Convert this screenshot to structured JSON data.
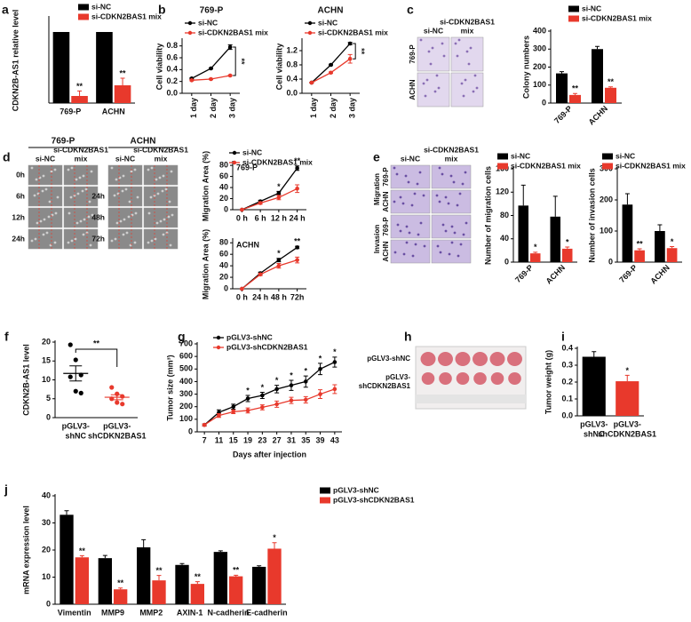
{
  "chart_data": [
    {
      "type": "bar",
      "panel": "a",
      "ylabel": "CDKN2B-AS1 relative level",
      "categories": [
        "769-P",
        "ACHN"
      ],
      "series": [
        {
          "name": "si-NC",
          "color": "#000000",
          "values": [
            1,
            1
          ]
        },
        {
          "name": "si-CDKN2BAS1 mix",
          "color": "#e8392c",
          "values": [
            0.1,
            0.25
          ],
          "errors": [
            0.07,
            0.1
          ],
          "significance": [
            "**",
            "**"
          ]
        }
      ],
      "ylim": [
        0,
        1.2
      ],
      "yticks": []
    },
    {
      "type": "line",
      "panel": "b",
      "title": "769-P",
      "ylabel": "Cell viability",
      "categories": [
        "1 day",
        "2 day",
        "3 day"
      ],
      "series": [
        {
          "name": "si-NC",
          "color": "#000000",
          "values": [
            0.25,
            0.42,
            0.78
          ],
          "errors": [
            0.01,
            0.01,
            0.04
          ]
        },
        {
          "name": "si-CDKN2BAS1 mix",
          "color": "#e8392c",
          "values": [
            0.22,
            0.24,
            0.3
          ],
          "errors": [
            0.01,
            0.01,
            0.01
          ]
        }
      ],
      "ylim": [
        0,
        0.9
      ],
      "yticks": [
        {
          "value": 0,
          "label": "0.0"
        },
        0.2,
        0.4,
        0.6,
        0.8
      ],
      "significance": "**"
    },
    {
      "type": "line",
      "title": "ACHN",
      "ylabel": "Cell viability",
      "categories": [
        "1 day",
        "2 day",
        "3 day"
      ],
      "series": [
        {
          "name": "si-NC",
          "color": "#000000",
          "values": [
            0.3,
            0.8,
            1.4
          ],
          "errors": [
            0.01,
            0.02,
            0.03
          ]
        },
        {
          "name": "si-CDKN2BAS1 mix",
          "color": "#e8392c",
          "values": [
            0.3,
            0.58,
            0.97
          ],
          "errors": [
            0.01,
            0.02,
            0.12
          ]
        }
      ],
      "ylim": [
        0,
        1.5
      ],
      "yticks": [
        {
          "value": 0,
          "label": "0.0"
        },
        0.4,
        0.8,
        1.2
      ],
      "significance": "**"
    },
    {
      "type": "bar",
      "ylabel": "Colony numbers",
      "categories": [
        "769-P",
        "ACHN"
      ],
      "series": [
        {
          "name": "si-NC",
          "color": "#000000",
          "values": [
            165,
            300
          ],
          "errors": [
            10,
            15
          ]
        },
        {
          "name": "si-CDKN2BAS1 mix",
          "color": "#e8392c",
          "values": [
            45,
            85
          ],
          "errors": [
            8,
            5
          ],
          "significance": [
            "**",
            "**"
          ]
        }
      ],
      "ylim": [
        0,
        400
      ],
      "yticks": [
        0,
        100,
        200,
        300,
        400
      ]
    },
    {
      "type": "line",
      "title": "769-P",
      "ylabel": "Migration Area (%)",
      "categories": [
        "0 h",
        "6 h",
        "12 h",
        "24 h"
      ],
      "series": [
        {
          "name": "si-NC",
          "color": "#000000",
          "values": [
            0,
            15,
            30,
            75
          ],
          "errors": [
            0,
            2,
            3,
            4
          ]
        },
        {
          "name": "si-CDKN2BAS1 mix",
          "color": "#e8392c",
          "values": [
            0,
            12,
            22,
            38
          ],
          "errors": [
            0,
            2,
            4,
            7
          ]
        }
      ],
      "ylim": [
        0,
        85
      ],
      "yticks": [
        0,
        20,
        40,
        60,
        80
      ],
      "significance": [
        null,
        null,
        "*",
        "**"
      ]
    },
    {
      "type": "line",
      "title": "ACHN",
      "ylabel": "Migration Area (%)",
      "categories": [
        "0 h",
        "24 h",
        "48 h",
        "72h"
      ],
      "series": [
        {
          "name": "si-NC",
          "color": "#000000",
          "values": [
            0,
            27,
            50,
            72
          ],
          "errors": [
            0,
            2,
            3,
            2
          ]
        },
        {
          "name": "si-CDKN2BAS1 mix",
          "color": "#e8392c",
          "values": [
            0,
            25,
            40,
            50
          ],
          "errors": [
            0,
            2,
            4,
            5
          ]
        }
      ],
      "ylim": [
        0,
        85
      ],
      "yticks": [
        0,
        20,
        40,
        60,
        80
      ],
      "significance": [
        null,
        null,
        "*",
        "**"
      ]
    },
    {
      "type": "bar",
      "ylabel": "Number of migration cells",
      "categories": [
        "769-P",
        "ACHN"
      ],
      "series": [
        {
          "name": "si-NC",
          "color": "#000000",
          "values": [
            97,
            78
          ],
          "errors": [
            35,
            35
          ]
        },
        {
          "name": "si-CDKN2BAS1 mix",
          "color": "#e8392c",
          "values": [
            15,
            23
          ],
          "errors": [
            2,
            3
          ],
          "significance": [
            "*",
            "*"
          ]
        }
      ],
      "ylim": [
        0,
        160
      ],
      "yticks": [
        0,
        40,
        80,
        120,
        160
      ]
    },
    {
      "type": "bar",
      "ylabel": "Number of invasion cells",
      "categories": [
        "769-P",
        "ACHN"
      ],
      "series": [
        {
          "name": "si-NC",
          "color": "#000000",
          "values": [
            185,
            100
          ],
          "errors": [
            35,
            20
          ]
        },
        {
          "name": "si-CDKN2BAS1 mix",
          "color": "#e8392c",
          "values": [
            38,
            45
          ],
          "errors": [
            5,
            5
          ],
          "significance": [
            "**",
            "*"
          ]
        }
      ],
      "ylim": [
        0,
        300
      ],
      "yticks": [
        0,
        100,
        200,
        300
      ]
    },
    {
      "type": "strip",
      "panel": "f",
      "ylabel": "CDKN2B-AS1 level",
      "categories": [
        [
          "pGLV3-",
          "shNC"
        ],
        [
          "pGLV3-",
          "shCDKN2BAS1"
        ]
      ],
      "series": [
        {
          "color": "#000000",
          "values": [
            19.3,
            15.3,
            11.3,
            10.8,
            7,
            6.5
          ],
          "mean": 11.7,
          "sem": 2
        },
        {
          "color": "#e8392c",
          "values": [
            8,
            6.3,
            5.6,
            5,
            4,
            3.6
          ],
          "mean": 5.4,
          "sem": 0.65
        }
      ],
      "ylim": [
        0,
        20
      ],
      "yticks": [
        0,
        5,
        10,
        15,
        20
      ],
      "significance": "**"
    },
    {
      "type": "line",
      "panel": "g",
      "ylabel": "Tumor size (mm³)",
      "xlabel": "Days after injection",
      "x": [
        7,
        11,
        15,
        19,
        23,
        27,
        31,
        35,
        39,
        43
      ],
      "series": [
        {
          "name": "pGLV3-shNC",
          "color": "#000000",
          "values": [
            55,
            155,
            200,
            265,
            290,
            340,
            370,
            400,
            500,
            555
          ],
          "errors": [
            8,
            20,
            20,
            25,
            25,
            30,
            40,
            45,
            45,
            40
          ]
        },
        {
          "name": "pGLV3-shCDKN2BAS1",
          "color": "#e8392c",
          "values": [
            55,
            130,
            160,
            170,
            195,
            220,
            250,
            255,
            300,
            340
          ],
          "errors": [
            8,
            15,
            15,
            20,
            20,
            25,
            25,
            25,
            35,
            35
          ]
        }
      ],
      "xlim": [
        5,
        45
      ],
      "xticks": [
        7,
        11,
        15,
        19,
        23,
        27,
        31,
        35,
        39,
        43
      ],
      "ylim": [
        0,
        700
      ],
      "yticks": [
        0,
        100,
        200,
        300,
        400,
        500,
        600,
        700
      ],
      "significance": [
        null,
        null,
        null,
        "*",
        "*",
        "*",
        "*",
        "*",
        "*",
        "*"
      ]
    },
    {
      "type": "bar",
      "panel": "i",
      "ylabel": "Tumor weight (g)",
      "categories": [
        [
          "pGLV3-",
          "shNC"
        ],
        [
          "pGLV3-",
          "shCDKN2BAS1"
        ]
      ],
      "values": [
        0.35,
        0.205
      ],
      "errors": [
        0.03,
        0.035
      ],
      "colors": [
        "#000000",
        "#e8392c"
      ],
      "significance": [
        null,
        "*"
      ],
      "ylim": [
        0,
        0.4
      ],
      "yticks": [
        {
          "value": 0,
          "label": "0.0"
        },
        0.1,
        0.2,
        0.3,
        0.4
      ]
    },
    {
      "type": "bar",
      "panel": "j",
      "ylabel": "mRNA expression level",
      "categories": [
        "Vimentin",
        "MMP9",
        "MMP2",
        "AXIN-1",
        "N-cadherin",
        "E-cadherin"
      ],
      "series": [
        {
          "name": "pGLV3-shNC",
          "color": "#000000",
          "values": [
            33,
            17,
            21,
            14.5,
            19.3,
            13.8
          ],
          "errors": [
            1.5,
            1,
            2.8,
            0.5,
            0.4,
            0.4
          ]
        },
        {
          "name": "pGLV3-shCDKN2BAS1",
          "color": "#e8392c",
          "values": [
            17.3,
            5.5,
            8.8,
            7.5,
            10.3,
            20.5
          ],
          "errors": [
            0.6,
            0.5,
            1.8,
            0.8,
            0.4,
            2.2
          ],
          "significance": [
            "**",
            "**",
            "**",
            "**",
            "**",
            "*"
          ]
        }
      ],
      "ylim": [
        0,
        40
      ],
      "yticks": [
        0,
        10,
        20,
        30,
        40
      ]
    }
  ],
  "images": [
    {
      "panel": "c",
      "columns": [
        [
          "si-NC"
        ],
        [
          "si-CDKN2BAS1",
          "mix"
        ]
      ],
      "rows": [
        "769-P",
        "ACHN"
      ]
    },
    {
      "panel": "d",
      "title": "769-P",
      "columns": [
        [
          "si-NC"
        ],
        [
          "si-CDKN2BAS1",
          "mix"
        ]
      ],
      "rows": [
        "0h",
        "6h",
        "12h",
        "24h"
      ]
    },
    {
      "title": "ACHN",
      "columns": [
        [
          "si-NC"
        ],
        [
          "si-CDKN2BAS1",
          "mix"
        ]
      ],
      "rows": [
        null,
        "24h",
        "48h",
        "72h"
      ]
    },
    {
      "panel": "e",
      "columns": [
        [
          "si-NC"
        ],
        [
          "si-CDKN2BAS1",
          "mix"
        ]
      ],
      "groups": [
        "Migration",
        "Invasion"
      ],
      "rows": [
        "769-P",
        "ACHN",
        "769-P",
        "ACHN"
      ]
    },
    {
      "panel": "h",
      "rows": [
        [
          "pGLV3-shNC"
        ],
        [
          "pGLV3-",
          "shCDKN2BAS1"
        ]
      ]
    }
  ]
}
